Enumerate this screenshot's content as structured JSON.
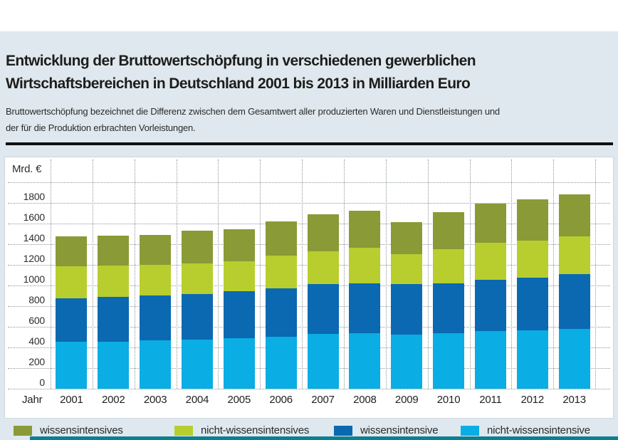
{
  "header": {
    "title_lines": [
      "Entwicklung der Bruttowertschöpfung in verschiedenen gewerblichen",
      "Wirtschaftsbereichen in Deutschland 2001 bis 2013 in Milliarden Euro"
    ],
    "subtitle_lines": [
      "Bruttowertschöpfung bezeichnet die Differenz zwischen dem Gesamtwert aller produzierten Waren und Dienstleistungen und",
      "der für die Produktion erbrachten Vorleistungen."
    ]
  },
  "colors": {
    "panel_background": "#dfe8ee",
    "chart_background": "#ffffff",
    "gridline": "#8f989d",
    "accent_bar": "#0c7f90",
    "title_text": "#1d1d1b"
  },
  "chart_data": {
    "type": "bar",
    "stacked": true,
    "title": "Entwicklung der Bruttowertschöpfung in verschiedenen gewerblichen Wirtschaftsbereichen in Deutschland 2001 bis 2013 in Milliarden Euro",
    "y_axis_unit": "Mrd. €",
    "x_axis_label": "Jahr",
    "grid": true,
    "ylim": [
      0,
      2000
    ],
    "y_step": 200,
    "y_ticks": [
      1800,
      1600,
      1400,
      1200,
      1000,
      800,
      600,
      400,
      200,
      0
    ],
    "categories": [
      "2001",
      "2002",
      "2003",
      "2004",
      "2005",
      "2006",
      "2007",
      "2008",
      "2009",
      "2010",
      "2011",
      "2012",
      "2013"
    ],
    "series": [
      {
        "name": "nicht-wissensintensive",
        "color": "#0aade4",
        "values": [
          455,
          455,
          465,
          475,
          490,
          505,
          530,
          540,
          525,
          535,
          560,
          565,
          575
        ]
      },
      {
        "name": "wissensintensive",
        "color": "#0a69b0",
        "values": [
          420,
          435,
          435,
          440,
          455,
          465,
          480,
          480,
          490,
          485,
          490,
          510,
          535
        ]
      },
      {
        "name": "nicht-wissensintensives",
        "color": "#b7ce2e",
        "values": [
          310,
          300,
          300,
          295,
          285,
          320,
          320,
          340,
          285,
          330,
          360,
          360,
          365
        ]
      },
      {
        "name": "wissensintensives",
        "color": "#8a9a36",
        "values": [
          285,
          290,
          285,
          320,
          315,
          330,
          355,
          360,
          310,
          360,
          380,
          395,
          405
        ]
      }
    ],
    "totals": [
      1470,
      1480,
      1485,
      1530,
      1545,
      1620,
      1685,
      1720,
      1610,
      1710,
      1790,
      1830,
      1880
    ],
    "legend_position": "bottom",
    "legend": [
      {
        "label": "wissensintensives",
        "color": "#8a9a36"
      },
      {
        "label": "nicht-wissensintensives",
        "color": "#b7ce2e"
      },
      {
        "label": "wissensintensive",
        "color": "#0a69b0"
      },
      {
        "label": "nicht-wissensintensive",
        "color": "#0aade4"
      }
    ]
  }
}
